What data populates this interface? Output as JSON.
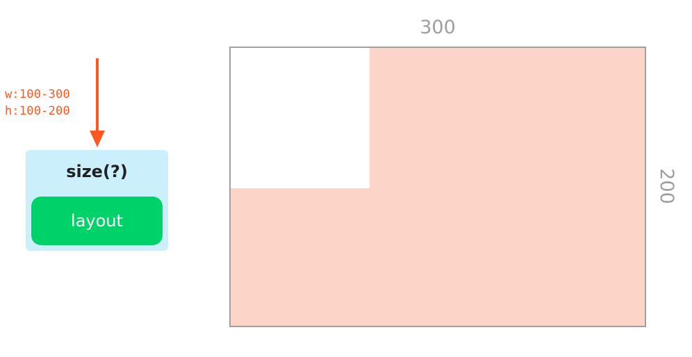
{
  "constraints": {
    "width": "w:100-300",
    "height": "h:100-200"
  },
  "node": {
    "title": "size(?)",
    "child_label": "layout"
  },
  "diagram": {
    "width_label": "300",
    "height_label": "200"
  },
  "colors": {
    "accent": "#ff5722",
    "node_bg": "#ccf0fb",
    "layout_pill": "#00d26a",
    "range_fill": "#fdd5c8",
    "frame": "#a0a0a0",
    "dimension_text": "#9e9e9e"
  }
}
